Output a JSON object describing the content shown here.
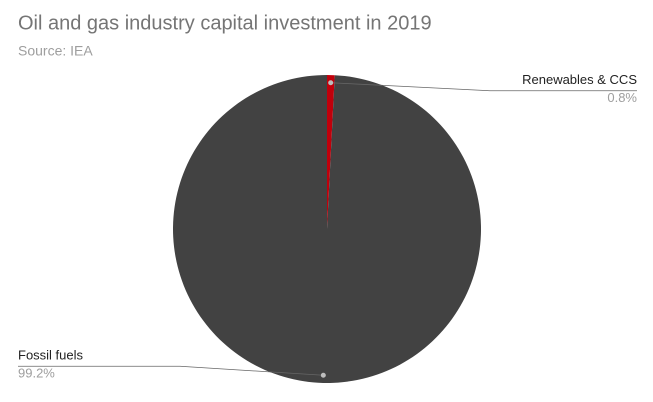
{
  "chart_data": {
    "type": "pie",
    "title": "Oil and gas industry capital investment in 2019",
    "subtitle": "Source: IEA",
    "categories": [
      "Renewables & CCS",
      "Fossil fuels"
    ],
    "values": [
      0.8,
      99.2
    ],
    "value_labels": [
      "0.8%",
      "99.2%"
    ],
    "colors": [
      "#c0000b",
      "#424242"
    ]
  }
}
